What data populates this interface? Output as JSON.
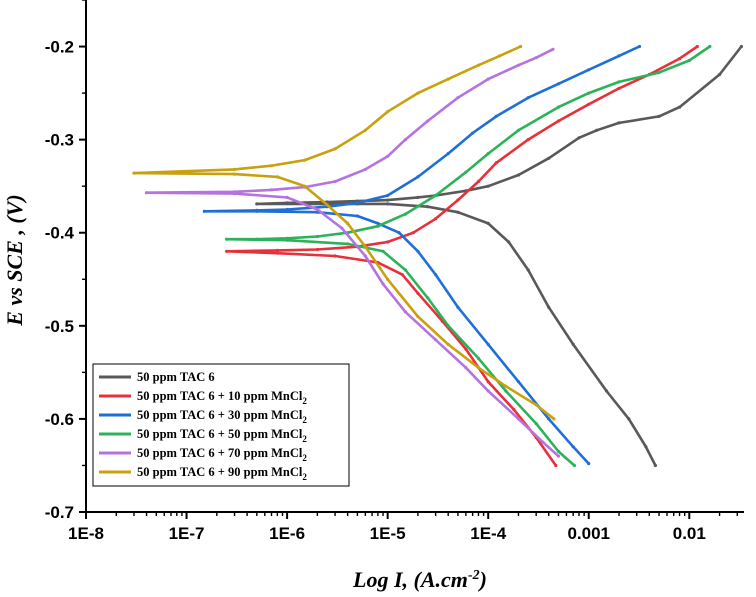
{
  "chart_data": {
    "type": "line",
    "title": "",
    "xlabel": "Log I, (A.cm",
    "xlabel_sup": "-2",
    "xlabel_tail": ")",
    "ylabel": "E vs SCE , (V)",
    "xscale": "log",
    "xlim": [
      1e-08,
      0.035
    ],
    "ylim": [
      -0.7,
      -0.15
    ],
    "xticks": [
      1e-08,
      1e-07,
      1e-06,
      1e-05,
      0.0001,
      0.001,
      0.01
    ],
    "xtick_labels": [
      "1E-8",
      "1E-7",
      "1E-6",
      "1E-5",
      "1E-4",
      "0.001",
      "0.01"
    ],
    "yticks": [
      -0.7,
      -0.6,
      -0.5,
      -0.4,
      -0.3,
      -0.2
    ],
    "ytick_labels": [
      "-0.7",
      "-0.6",
      "-0.5",
      "-0.4",
      "-0.3",
      "-0.2"
    ],
    "legend_position": "bottom-left",
    "series": [
      {
        "name": "50 ppm TAC 6",
        "legend_main": "50 ppm TAC 6",
        "legend_sub": "",
        "color": "#595959",
        "points": [
          [
            0.033,
            -0.2
          ],
          [
            0.02,
            -0.23
          ],
          [
            0.008,
            -0.265
          ],
          [
            0.005,
            -0.275
          ],
          [
            0.002,
            -0.282
          ],
          [
            0.0012,
            -0.29
          ],
          [
            0.0008,
            -0.298
          ],
          [
            0.0004,
            -0.32
          ],
          [
            0.0002,
            -0.338
          ],
          [
            0.0001,
            -0.35
          ],
          [
            6e-05,
            -0.355
          ],
          [
            3e-05,
            -0.36
          ],
          [
            2e-05,
            -0.362
          ],
          [
            1e-05,
            -0.365
          ],
          [
            5e-06,
            -0.366
          ],
          [
            2.5e-06,
            -0.367
          ],
          [
            1e-06,
            -0.368
          ],
          [
            5e-07,
            -0.369
          ],
          [
            2.5e-06,
            -0.369
          ],
          [
            5e-06,
            -0.369
          ],
          [
            1e-05,
            -0.369
          ],
          [
            2.5e-05,
            -0.372
          ],
          [
            5e-05,
            -0.378
          ],
          [
            0.0001,
            -0.39
          ],
          [
            0.00016,
            -0.41
          ],
          [
            0.00025,
            -0.44
          ],
          [
            0.0004,
            -0.48
          ],
          [
            0.0007,
            -0.52
          ],
          [
            0.0015,
            -0.57
          ],
          [
            0.0025,
            -0.6
          ],
          [
            0.0037,
            -0.63
          ],
          [
            0.0046,
            -0.65
          ]
        ]
      },
      {
        "name": "50 ppm TAC 6 + 10 ppm MnCl2",
        "legend_main": "50 ppm TAC 6 + 10 ppm MnCl",
        "legend_sub": "2",
        "color": "#e8303a",
        "points": [
          [
            0.012,
            -0.2
          ],
          [
            0.008,
            -0.213
          ],
          [
            0.004,
            -0.23
          ],
          [
            0.002,
            -0.245
          ],
          [
            0.001,
            -0.262
          ],
          [
            0.0005,
            -0.28
          ],
          [
            0.00025,
            -0.3
          ],
          [
            0.00012,
            -0.325
          ],
          [
            8e-05,
            -0.345
          ],
          [
            5e-05,
            -0.365
          ],
          [
            3e-05,
            -0.385
          ],
          [
            1.8e-05,
            -0.4
          ],
          [
            1e-05,
            -0.41
          ],
          [
            5e-06,
            -0.415
          ],
          [
            2e-06,
            -0.418
          ],
          [
            8e-07,
            -0.419
          ],
          [
            2.5e-07,
            -0.42
          ],
          [
            8e-07,
            -0.422
          ],
          [
            3e-06,
            -0.425
          ],
          [
            8e-06,
            -0.432
          ],
          [
            1.4e-05,
            -0.445
          ],
          [
            2e-05,
            -0.465
          ],
          [
            3.5e-05,
            -0.495
          ],
          [
            6e-05,
            -0.525
          ],
          [
            0.0001,
            -0.56
          ],
          [
            0.00018,
            -0.59
          ],
          [
            0.0003,
            -0.62
          ],
          [
            0.00047,
            -0.65
          ]
        ]
      },
      {
        "name": "50 ppm TAC 6 + 30 ppm MnCl2",
        "legend_main": "50 ppm TAC 6 + 30 ppm MnCl",
        "legend_sub": "2",
        "color": "#1f6fd6",
        "points": [
          [
            0.0032,
            -0.2
          ],
          [
            0.002,
            -0.21
          ],
          [
            0.001,
            -0.225
          ],
          [
            0.0005,
            -0.24
          ],
          [
            0.00025,
            -0.255
          ],
          [
            0.00012,
            -0.275
          ],
          [
            7e-05,
            -0.293
          ],
          [
            4e-05,
            -0.315
          ],
          [
            2e-05,
            -0.34
          ],
          [
            1e-05,
            -0.36
          ],
          [
            5e-06,
            -0.368
          ],
          [
            2.5e-06,
            -0.372
          ],
          [
            1e-06,
            -0.375
          ],
          [
            5e-07,
            -0.376
          ],
          [
            1.5e-07,
            -0.377
          ],
          [
            5e-07,
            -0.377
          ],
          [
            2e-06,
            -0.378
          ],
          [
            5e-06,
            -0.382
          ],
          [
            8e-06,
            -0.39
          ],
          [
            1.3e-05,
            -0.4
          ],
          [
            2e-05,
            -0.42
          ],
          [
            3e-05,
            -0.445
          ],
          [
            5e-05,
            -0.48
          ],
          [
            0.0001,
            -0.52
          ],
          [
            0.0002,
            -0.56
          ],
          [
            0.0004,
            -0.6
          ],
          [
            0.0007,
            -0.63
          ],
          [
            0.001,
            -0.648
          ]
        ]
      },
      {
        "name": "50 ppm TAC 6 + 50 ppm MnCl2",
        "legend_main": "50 ppm TAC 6 + 50 ppm MnCl",
        "legend_sub": "2",
        "color": "#2cb35a",
        "points": [
          [
            0.016,
            -0.2
          ],
          [
            0.01,
            -0.215
          ],
          [
            0.005,
            -0.228
          ],
          [
            0.002,
            -0.238
          ],
          [
            0.001,
            -0.25
          ],
          [
            0.0005,
            -0.265
          ],
          [
            0.0002,
            -0.29
          ],
          [
            0.0001,
            -0.315
          ],
          [
            6e-05,
            -0.335
          ],
          [
            3e-05,
            -0.36
          ],
          [
            1.5e-05,
            -0.38
          ],
          [
            8e-06,
            -0.393
          ],
          [
            4e-06,
            -0.4
          ],
          [
            2e-06,
            -0.404
          ],
          [
            1e-06,
            -0.406
          ],
          [
            5e-07,
            -0.407
          ],
          [
            2.5e-07,
            -0.407
          ],
          [
            1e-06,
            -0.408
          ],
          [
            4e-06,
            -0.412
          ],
          [
            9e-06,
            -0.42
          ],
          [
            1.5e-05,
            -0.44
          ],
          [
            2.5e-05,
            -0.47
          ],
          [
            4e-05,
            -0.5
          ],
          [
            8e-05,
            -0.535
          ],
          [
            0.00015,
            -0.57
          ],
          [
            0.0003,
            -0.605
          ],
          [
            0.0005,
            -0.635
          ],
          [
            0.00072,
            -0.65
          ]
        ]
      },
      {
        "name": "50 ppm TAC 6 + 70 ppm MnCl2",
        "legend_main": "50 ppm TAC 6 + 70 ppm MnCl",
        "legend_sub": "2",
        "color": "#b573e0",
        "points": [
          [
            0.00044,
            -0.203
          ],
          [
            0.0003,
            -0.212
          ],
          [
            0.0002,
            -0.22
          ],
          [
            0.0001,
            -0.235
          ],
          [
            5e-05,
            -0.255
          ],
          [
            2.5e-05,
            -0.28
          ],
          [
            1.5e-05,
            -0.3
          ],
          [
            1e-05,
            -0.318
          ],
          [
            6e-06,
            -0.332
          ],
          [
            3e-06,
            -0.345
          ],
          [
            1.5e-06,
            -0.351
          ],
          [
            7e-07,
            -0.354
          ],
          [
            3e-07,
            -0.356
          ],
          [
            4e-08,
            -0.357
          ],
          [
            3e-07,
            -0.358
          ],
          [
            1e-06,
            -0.362
          ],
          [
            2e-06,
            -0.375
          ],
          [
            3.5e-06,
            -0.395
          ],
          [
            6e-06,
            -0.425
          ],
          [
            9e-06,
            -0.455
          ],
          [
            1.5e-05,
            -0.485
          ],
          [
            3e-05,
            -0.515
          ],
          [
            6e-05,
            -0.545
          ],
          [
            0.0001,
            -0.57
          ],
          [
            0.0002,
            -0.6
          ],
          [
            0.00035,
            -0.625
          ],
          [
            0.0005,
            -0.64
          ]
        ]
      },
      {
        "name": "50 ppm TAC 6 + 90 ppm MnCl2",
        "legend_main": "50 ppm TAC 6 + 90 ppm MnCl",
        "legend_sub": "2",
        "color": "#c9a00e",
        "points": [
          [
            0.00021,
            -0.2
          ],
          [
            0.00013,
            -0.21
          ],
          [
            8e-05,
            -0.22
          ],
          [
            4e-05,
            -0.235
          ],
          [
            2e-05,
            -0.25
          ],
          [
            1e-05,
            -0.27
          ],
          [
            6e-06,
            -0.29
          ],
          [
            3e-06,
            -0.31
          ],
          [
            1.5e-06,
            -0.322
          ],
          [
            7e-07,
            -0.328
          ],
          [
            3e-07,
            -0.332
          ],
          [
            3e-08,
            -0.336
          ],
          [
            3e-07,
            -0.337
          ],
          [
            8e-07,
            -0.34
          ],
          [
            1.5e-06,
            -0.35
          ],
          [
            2.5e-06,
            -0.37
          ],
          [
            4e-06,
            -0.39
          ],
          [
            6e-06,
            -0.415
          ],
          [
            1e-05,
            -0.45
          ],
          [
            2e-05,
            -0.49
          ],
          [
            4e-05,
            -0.52
          ],
          [
            8e-05,
            -0.545
          ],
          [
            0.00015,
            -0.565
          ],
          [
            0.0003,
            -0.585
          ],
          [
            0.00045,
            -0.6
          ]
        ]
      }
    ]
  }
}
